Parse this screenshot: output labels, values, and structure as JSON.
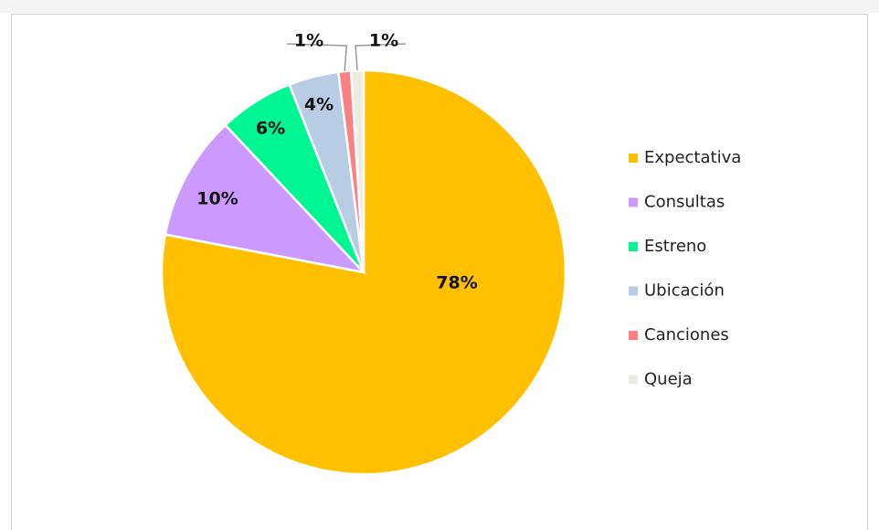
{
  "chart_data": {
    "type": "pie",
    "categories": [
      "Expectativa",
      "Consultas",
      "Estreno",
      "Ubicación",
      "Canciones",
      "Queja"
    ],
    "values": [
      78,
      10,
      6,
      4,
      1,
      1
    ],
    "value_labels": [
      "78%",
      "10%",
      "6%",
      "4%",
      "1%",
      "1%"
    ],
    "colors": [
      "#ffc000",
      "#cc99ff",
      "#00f593",
      "#b8cce4",
      "#ff8080",
      "#eeece1"
    ],
    "legend": "right"
  }
}
